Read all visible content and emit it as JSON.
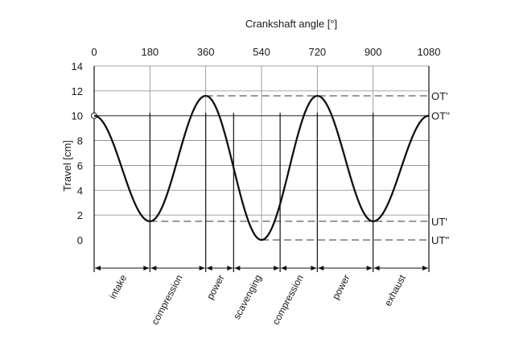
{
  "chart_data": {
    "type": "line",
    "title": "",
    "xlabel": "Crankshaft angle [°]",
    "ylabel": "Travel [cm]",
    "xlim": [
      0,
      1080
    ],
    "ylim": [
      0,
      14
    ],
    "x_ticks": [
      "0",
      "180",
      "360",
      "540",
      "720",
      "900",
      "1080"
    ],
    "y_ticks": [
      "0",
      "2",
      "4",
      "6",
      "8",
      "10",
      "12",
      "14"
    ],
    "grid": true,
    "series": [
      {
        "name": "",
        "x": [
          0,
          180,
          360,
          540,
          720,
          900,
          1080
        ],
        "y": [
          10,
          1.5,
          11.6,
          0,
          11.6,
          1.5,
          10
        ]
      }
    ],
    "reference_lines": [
      {
        "label": "OT'",
        "y": 11.6,
        "x_start": 360,
        "x_end": 1080
      },
      {
        "label": "OT''",
        "y": 10,
        "x_start": 0,
        "x_end": 1080
      },
      {
        "label": "UT'",
        "y": 1.5,
        "x_start": 180,
        "x_end": 1080
      },
      {
        "label": "UT''",
        "y": 0,
        "x_start": 540,
        "x_end": 1080
      }
    ],
    "phase_boundaries": [
      0,
      180,
      360,
      450,
      600,
      720,
      900,
      1080
    ],
    "phases": [
      {
        "label": "intake",
        "x_start": 0,
        "x_end": 180
      },
      {
        "label": "compression",
        "x_start": 180,
        "x_end": 360
      },
      {
        "label": "power",
        "x_start": 360,
        "x_end": 450
      },
      {
        "label": "scavenging",
        "x_start": 450,
        "x_end": 600
      },
      {
        "label": "compression",
        "x_start": 600,
        "x_end": 720
      },
      {
        "label": "power",
        "x_start": 720,
        "x_end": 900
      },
      {
        "label": "exhaust",
        "x_start": 900,
        "x_end": 1080
      }
    ]
  }
}
